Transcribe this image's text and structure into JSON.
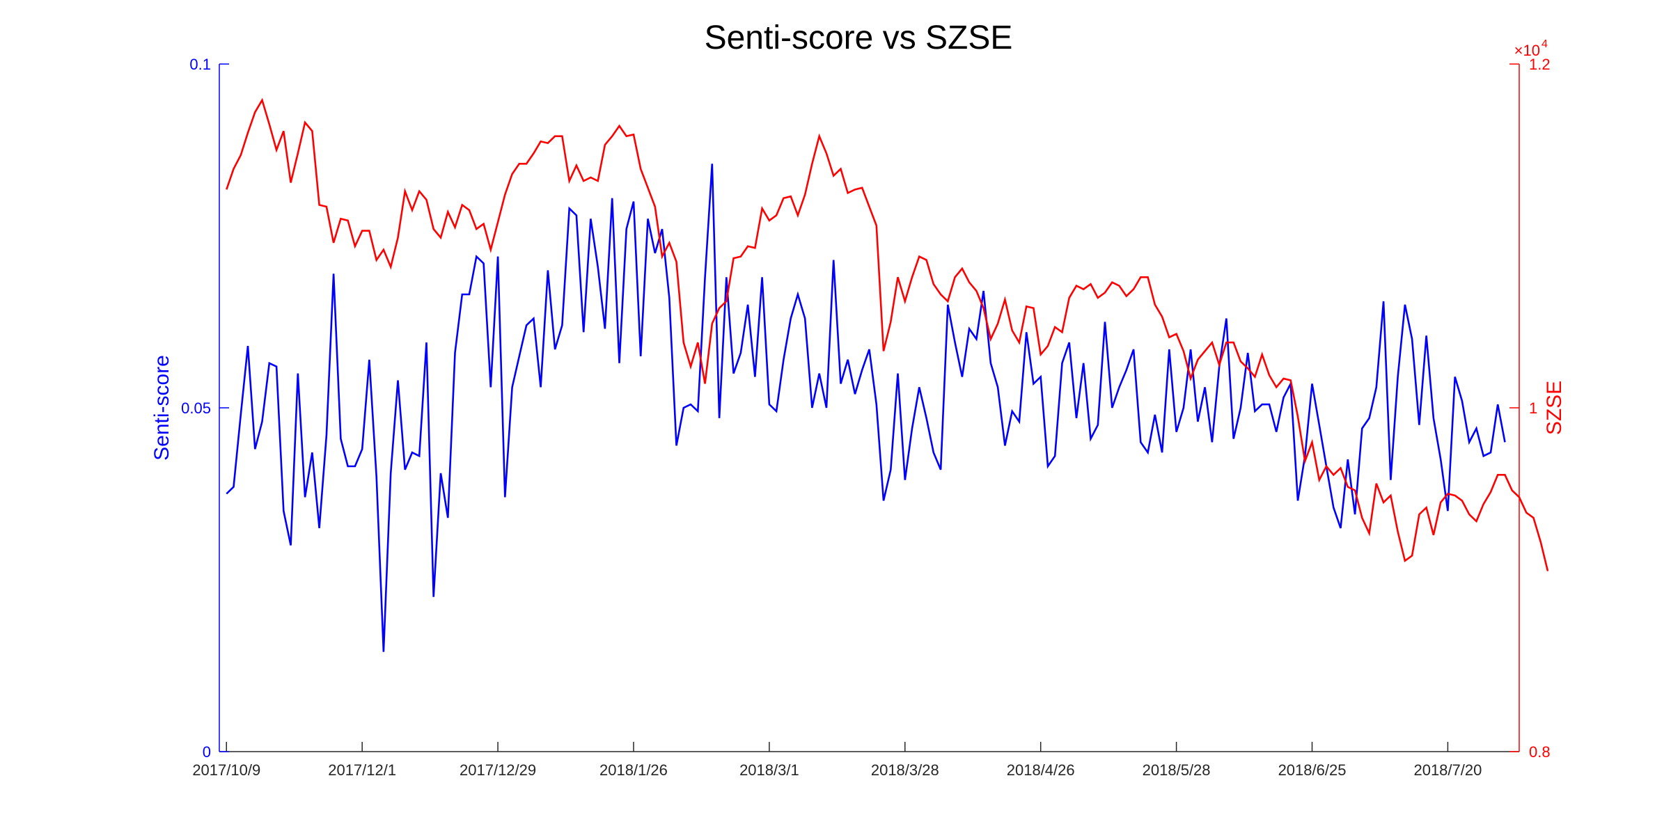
{
  "chart_data": {
    "type": "line",
    "title": "Senti-score vs SZSE",
    "xlabel": "",
    "x_tick_labels": [
      "2017/10/9",
      "2017/12/1",
      "2017/12/29",
      "2018/1/26",
      "2018/3/1",
      "2018/3/28",
      "2018/4/26",
      "2018/5/28",
      "2018/6/25",
      "2018/7/20"
    ],
    "x_tick_index": [
      0,
      19,
      38,
      57,
      76,
      95,
      114,
      133,
      152,
      171
    ],
    "x_range": [
      -1,
      181
    ],
    "left_axis": {
      "label": "Senti-score",
      "ylim": [
        0,
        0.1
      ],
      "ticks": [
        0,
        0.05,
        0.1
      ],
      "tick_labels": [
        "0",
        "0.05",
        "0.1"
      ],
      "color": "#0000ff"
    },
    "right_axis": {
      "label": "SZSE",
      "ylim": [
        8000,
        12000
      ],
      "ticks": [
        8000,
        10000,
        12000
      ],
      "tick_labels": [
        "0.8",
        "1",
        "1.2"
      ],
      "exponent_label": "×10",
      "exponent_power": "4",
      "color": "#ff0000"
    },
    "grid": false,
    "series": [
      {
        "axis": "left",
        "color": "#0000ff",
        "values": [
          0.0375,
          0.0385,
          0.049,
          0.059,
          0.044,
          0.048,
          0.0565,
          0.056,
          0.035,
          0.03,
          0.055,
          0.037,
          0.0435,
          0.0325,
          0.046,
          0.0695,
          0.0455,
          0.0415,
          0.0415,
          0.044,
          0.057,
          0.04,
          0.0145,
          0.0405,
          0.054,
          0.041,
          0.0435,
          0.043,
          0.0595,
          0.0225,
          0.0405,
          0.034,
          0.058,
          0.0665,
          0.0665,
          0.072,
          0.071,
          0.053,
          0.072,
          0.037,
          0.053,
          0.0575,
          0.062,
          0.063,
          0.053,
          0.07,
          0.0585,
          0.062,
          0.079,
          0.078,
          0.061,
          0.0775,
          0.0705,
          0.0615,
          0.0805,
          0.0565,
          0.076,
          0.08,
          0.0575,
          0.0775,
          0.0725,
          0.076,
          0.066,
          0.0445,
          0.05,
          0.0505,
          0.0495,
          0.069,
          0.0855,
          0.0485,
          0.069,
          0.055,
          0.058,
          0.065,
          0.0545,
          0.069,
          0.0505,
          0.0495,
          0.057,
          0.063,
          0.0665,
          0.063,
          0.05,
          0.055,
          0.05,
          0.0715,
          0.0535,
          0.057,
          0.052,
          0.0555,
          0.0585,
          0.0505,
          0.0365,
          0.041,
          0.055,
          0.0395,
          0.047,
          0.053,
          0.0485,
          0.0435,
          0.041,
          0.065,
          0.0595,
          0.0545,
          0.0615,
          0.06,
          0.067,
          0.0565,
          0.053,
          0.0445,
          0.0495,
          0.048,
          0.061,
          0.0535,
          0.0545,
          0.0415,
          0.043,
          0.0565,
          0.0595,
          0.0485,
          0.0565,
          0.0455,
          0.0475,
          0.0625,
          0.05,
          0.053,
          0.0555,
          0.0585,
          0.045,
          0.0435,
          0.049,
          0.0435,
          0.0585,
          0.0465,
          0.05,
          0.0585,
          0.048,
          0.053,
          0.045,
          0.056,
          0.063,
          0.0455,
          0.05,
          0.058,
          0.0495,
          0.0505,
          0.0505,
          0.0465,
          0.0515,
          0.0535,
          0.0365,
          0.043,
          0.0535,
          0.0475,
          0.0415,
          0.0355,
          0.0325,
          0.0425,
          0.0345,
          0.047,
          0.0485,
          0.053,
          0.0655,
          0.0395,
          0.0545,
          0.065,
          0.06,
          0.0475,
          0.0605,
          0.0485,
          0.0425,
          0.035,
          0.0545,
          0.051,
          0.045,
          0.047,
          0.043,
          0.0435,
          0.0505,
          0.045
        ]
      },
      {
        "axis": "right",
        "color": "#ff0000",
        "values": [
          11270,
          11390,
          11470,
          11600,
          11720,
          11790,
          11650,
          11500,
          11610,
          11310,
          11480,
          11660,
          11610,
          11180,
          11170,
          10960,
          11100,
          11090,
          10940,
          11030,
          11030,
          10860,
          10920,
          10820,
          10990,
          11260,
          11150,
          11260,
          11210,
          11040,
          10990,
          11140,
          11050,
          11180,
          11150,
          11040,
          11070,
          10920,
          11080,
          11240,
          11360,
          11420,
          11420,
          11480,
          11550,
          11540,
          11580,
          11580,
          11320,
          11410,
          11320,
          11340,
          11320,
          11530,
          11580,
          11640,
          11580,
          11590,
          11390,
          11280,
          11170,
          10880,
          10960,
          10850,
          10380,
          10240,
          10380,
          10140,
          10490,
          10580,
          10620,
          10870,
          10880,
          10940,
          10930,
          11160,
          11090,
          11120,
          11220,
          11230,
          11120,
          11240,
          11420,
          11580,
          11480,
          11350,
          11390,
          11250,
          11270,
          11280,
          11170,
          11060,
          10330,
          10500,
          10760,
          10620,
          10760,
          10880,
          10860,
          10720,
          10660,
          10620,
          10760,
          10810,
          10730,
          10680,
          10580,
          10400,
          10490,
          10630,
          10450,
          10380,
          10590,
          10580,
          10310,
          10360,
          10470,
          10440,
          10640,
          10710,
          10690,
          10720,
          10640,
          10670,
          10730,
          10710,
          10650,
          10690,
          10760,
          10760,
          10600,
          10530,
          10410,
          10430,
          10330,
          10170,
          10280,
          10330,
          10380,
          10250,
          10380,
          10380,
          10270,
          10230,
          10180,
          10310,
          10190,
          10120,
          10170,
          10160,
          9950,
          9690,
          9800,
          9580,
          9660,
          9610,
          9650,
          9540,
          9520,
          9360,
          9270,
          9560,
          9450,
          9490,
          9280,
          9110,
          9140,
          9380,
          9420,
          9260,
          9450,
          9500,
          9490,
          9460,
          9380,
          9340,
          9440,
          9510,
          9610,
          9610,
          9520,
          9480,
          9390,
          9360,
          9220,
          9050
        ]
      }
    ]
  }
}
